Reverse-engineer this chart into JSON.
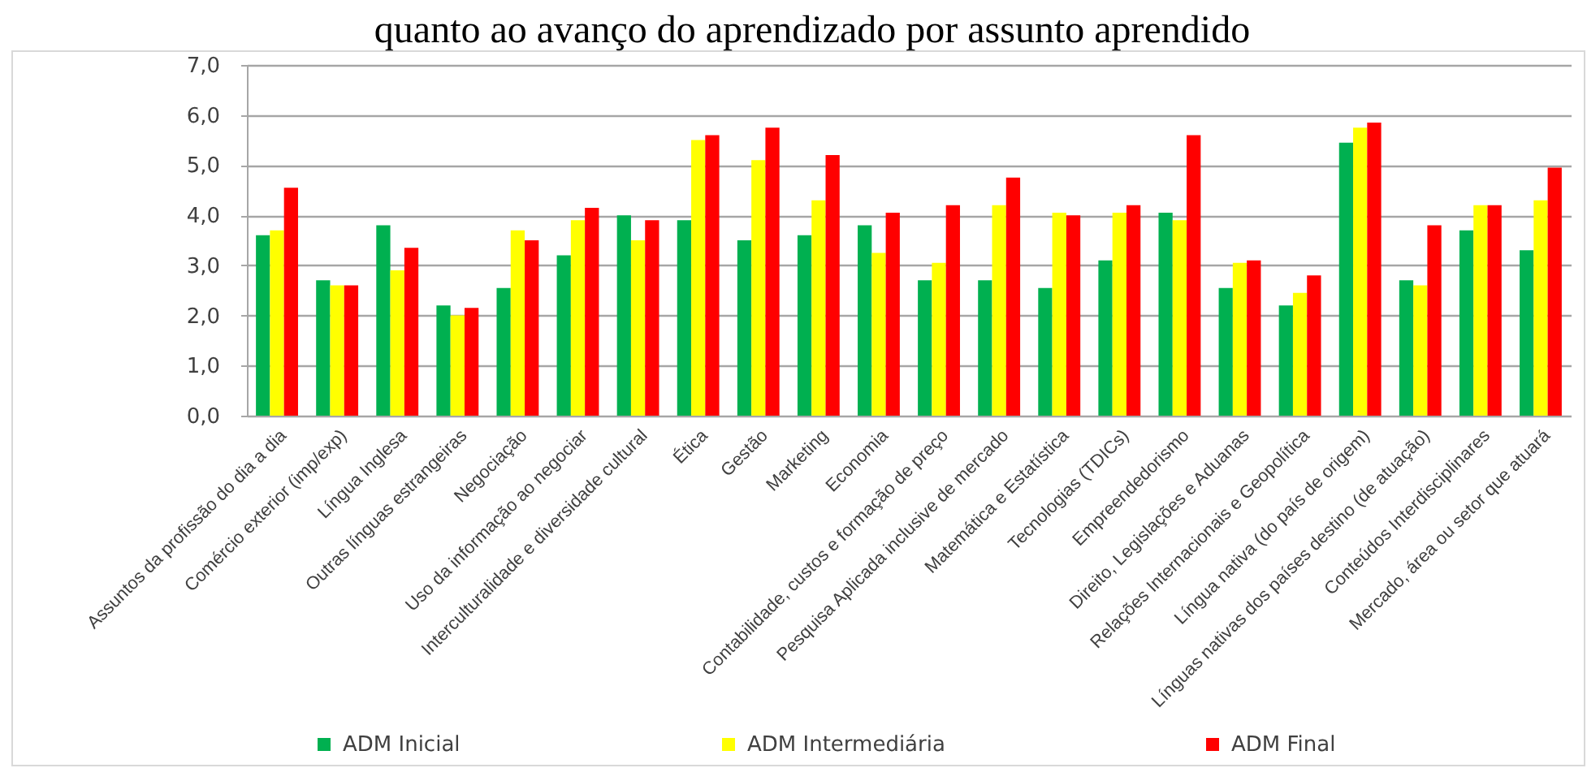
{
  "chart_data": {
    "type": "bar",
    "title": "quanto ao avanço do aprendizado por assunto aprendido",
    "categories": [
      "Assuntos da profissão do dia a dia",
      "Comércio exterior (imp/exp)",
      "Língua Inglesa",
      "Outras línguas estrangeiras",
      "Negociação",
      "Uso da informação ao negociar",
      "Interculturalidade e diversidade cultural",
      "Ética",
      "Gestão",
      "Marketing",
      "Economia",
      "Contabilidade, custos e formação de preço",
      "Pesquisa Aplicada inclusive de mercado",
      "Matemática e Estatística",
      "Tecnologias (TDICs)",
      "Empreendedorismo",
      "Direito, Legislações e Aduanas",
      "Relações Internacionais e Geopolítica",
      "Língua nativa (do país de origem)",
      "Línguas nativas dos países destino (de atuação)",
      "Conteúdos Interdisciplinares",
      "Mercado, área ou setor que atuará"
    ],
    "series": [
      {
        "name": "ADM Inicial",
        "color": "#00b050",
        "values": [
          3.6,
          2.7,
          3.8,
          2.2,
          2.55,
          3.2,
          4.0,
          3.9,
          3.5,
          3.6,
          3.8,
          2.7,
          2.7,
          2.55,
          3.1,
          4.05,
          2.55,
          2.2,
          5.45,
          2.7,
          3.7,
          3.3
        ]
      },
      {
        "name": "ADM Intermediária",
        "color": "#ffff00",
        "values": [
          3.7,
          2.6,
          2.9,
          2.0,
          3.7,
          3.9,
          3.5,
          5.5,
          5.1,
          4.3,
          3.25,
          3.05,
          4.2,
          4.05,
          4.05,
          3.9,
          3.05,
          2.45,
          5.75,
          2.6,
          4.2,
          4.3
        ]
      },
      {
        "name": "ADM Final",
        "color": "#ff0000",
        "values": [
          4.55,
          2.6,
          3.35,
          2.15,
          3.5,
          4.15,
          3.9,
          5.6,
          5.75,
          5.2,
          4.05,
          4.2,
          4.75,
          4.0,
          4.2,
          5.6,
          3.1,
          2.8,
          5.85,
          3.8,
          4.2,
          4.95
        ]
      }
    ],
    "ylim": [
      0,
      7
    ],
    "yticks": [
      {
        "value": 0,
        "label": "0,0"
      },
      {
        "value": 1,
        "label": "1,0"
      },
      {
        "value": 2,
        "label": "2,0"
      },
      {
        "value": 3,
        "label": "3,0"
      },
      {
        "value": 4,
        "label": "4,0"
      },
      {
        "value": 5,
        "label": "5,0"
      },
      {
        "value": 6,
        "label": "6,0"
      },
      {
        "value": 7,
        "label": "7,0"
      }
    ],
    "grid": "y",
    "legend": "bottom"
  }
}
